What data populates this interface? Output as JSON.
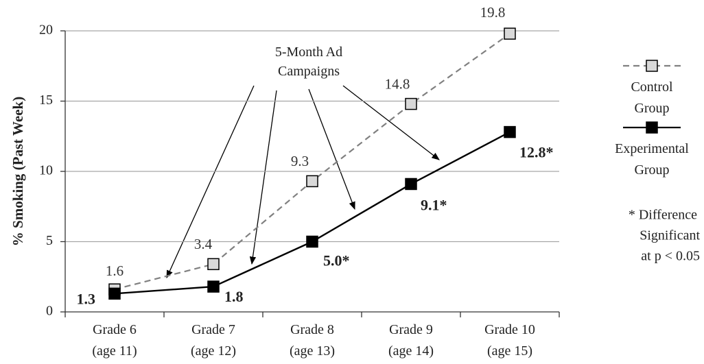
{
  "chart_data": {
    "type": "line",
    "y_label": "% Smoking (Past Week)",
    "categories": [
      "Grade 6\n(age 11)",
      "Grade 7\n(age 12)",
      "Grade 8\n(age 13)",
      "Grade 9\n(age 14)",
      "Grade 10\n(age 15)"
    ],
    "series": [
      {
        "name": "Control\nGroup",
        "color": "#808080",
        "marker_fill": "#d9d9d9",
        "dashed": true,
        "values": [
          1.6,
          3.4,
          9.3,
          14.8,
          19.8
        ]
      },
      {
        "name": "Experimental\nGroup",
        "color": "#000000",
        "marker_fill": "#000000",
        "dashed": false,
        "values": [
          1.3,
          1.8,
          5.0,
          9.1,
          12.8
        ],
        "value_labels": [
          "1.3",
          "1.8",
          "5.0*",
          "9.1*",
          "12.8*"
        ]
      }
    ],
    "ylim": [
      0,
      20
    ],
    "yticks": [
      0,
      5,
      10,
      15,
      20
    ],
    "grid": true,
    "annotation": "5-Month Ad\nCampaigns",
    "note": [
      "* Difference",
      "Significant",
      "at p < 0.05"
    ]
  }
}
